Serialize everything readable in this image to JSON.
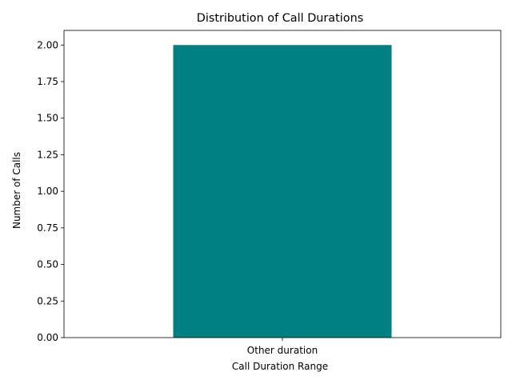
{
  "chart_data": {
    "type": "bar",
    "title": "Distribution of Call Durations",
    "xlabel": "Call Duration Range",
    "ylabel": "Number of Calls",
    "categories": [
      "Other duration"
    ],
    "values": [
      2
    ],
    "ylim": [
      0,
      2.1
    ],
    "yticks": [
      "0.00",
      "0.25",
      "0.50",
      "0.75",
      "1.00",
      "1.25",
      "1.50",
      "1.75",
      "2.00"
    ],
    "bar_color": "#008080",
    "grid": false,
    "legend": "none"
  }
}
